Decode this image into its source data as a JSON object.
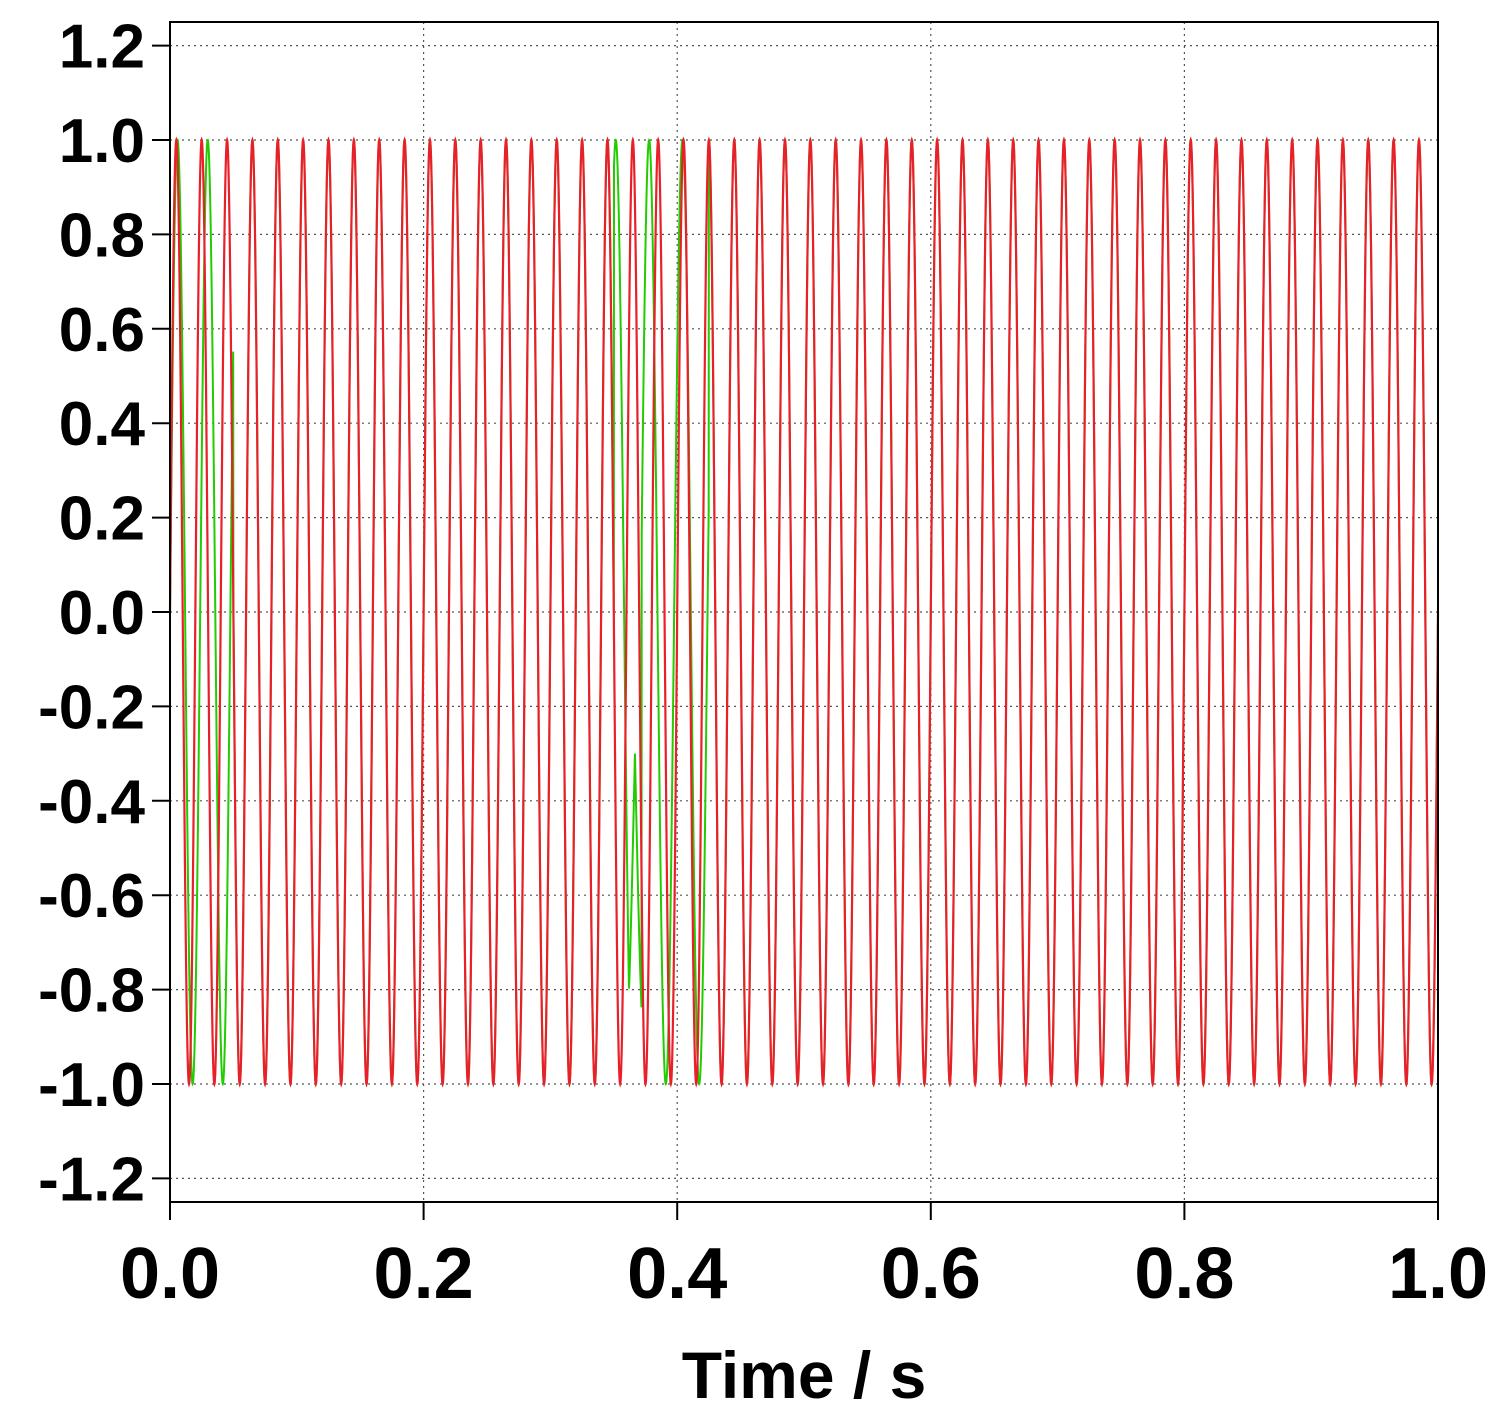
{
  "chart_data": {
    "type": "line",
    "title": "",
    "xlabel": "Time / s",
    "ylabel": "",
    "xlim": [
      0.0,
      1.0
    ],
    "ylim": [
      -1.25,
      1.25
    ],
    "grid": true,
    "x_ticks": [
      0.0,
      0.2,
      0.4,
      0.6,
      0.8,
      1.0
    ],
    "x_tick_labels": [
      "0.0",
      "0.2",
      "0.4",
      "0.6",
      "0.8",
      "1.0"
    ],
    "y_ticks": [
      1.2,
      1.0,
      0.8,
      0.6,
      0.4,
      0.2,
      0.0,
      -0.2,
      -0.4,
      -0.6,
      -0.8,
      -1.0,
      -1.2
    ],
    "y_tick_labels": [
      "1.2",
      "1.0",
      "0.8",
      "0.6",
      "0.4",
      "0.2",
      "0.0",
      "-0.2",
      "-0.4",
      "-0.6",
      "-0.8",
      "-1.0",
      "-1.2"
    ],
    "series": [
      {
        "name": "green",
        "color": "#22cc00",
        "description_values": {
          "start": 0.0,
          "amplitude": 1.0,
          "frequency_hz_approx": 50,
          "note": "locks onto red except transient intervals near t=0.00-0.05 s and t=0.35-0.42 s; dips to about -0.3 near t=0.37 s"
        }
      },
      {
        "name": "red",
        "color": "#e8202a",
        "description_values": {
          "start": 0.0,
          "amplitude": 1.0,
          "frequency_hz_approx": 50
        }
      }
    ]
  },
  "colors": {
    "red_series": "#e8202a",
    "green_series": "#22cc00",
    "grid": "#555555",
    "axis": "#000000"
  }
}
